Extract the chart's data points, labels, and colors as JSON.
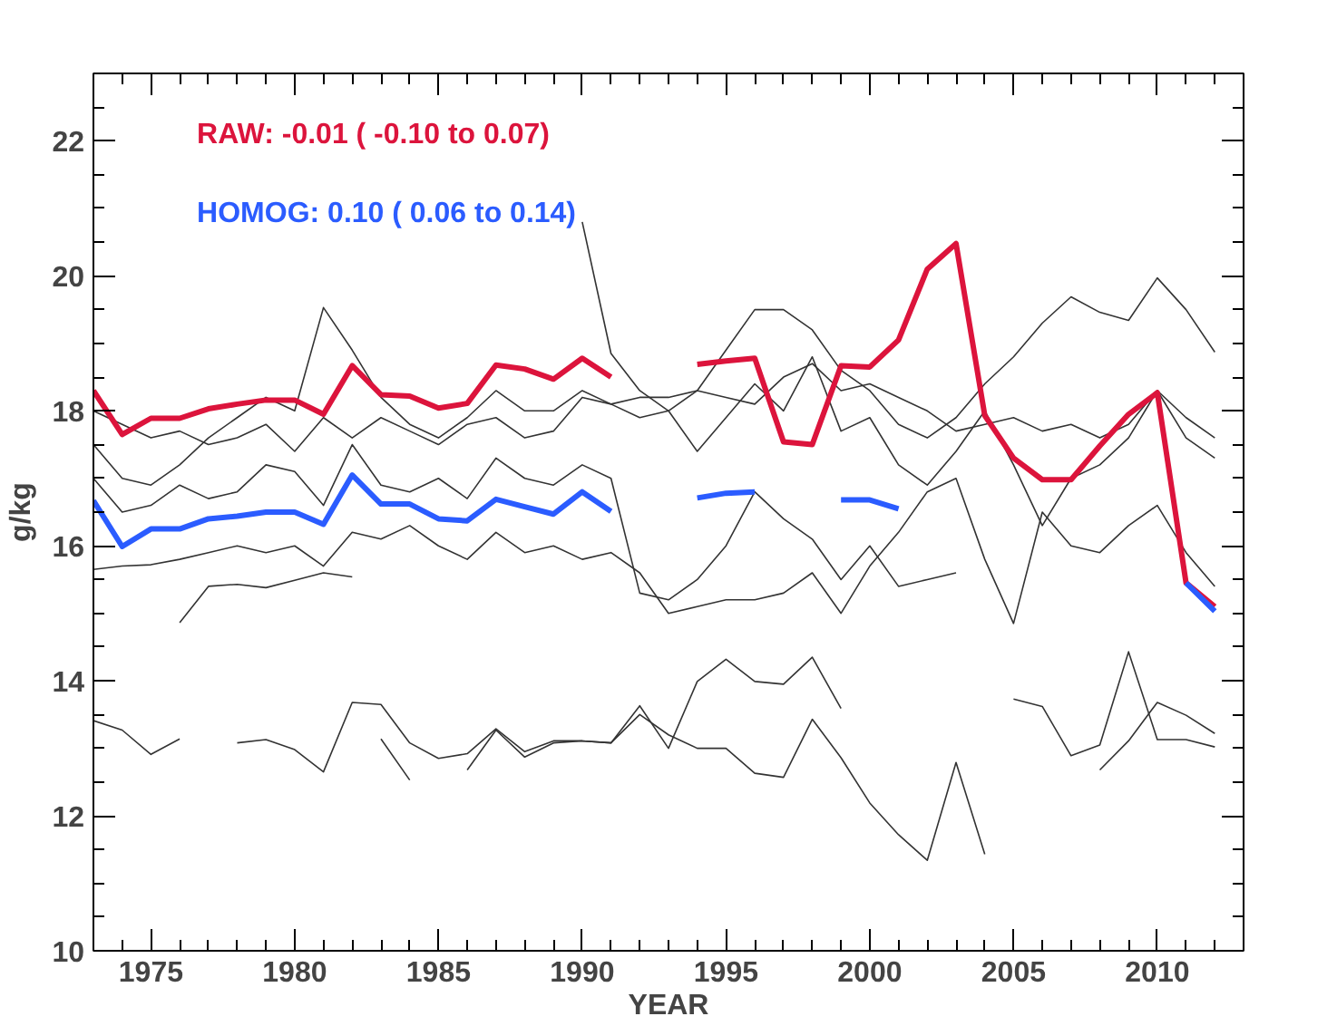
{
  "chart_data": {
    "type": "line",
    "xlabel": "YEAR",
    "ylabel": "g/kg",
    "legend": "top left",
    "grid": false,
    "line_style": "solid",
    "marker": "none",
    "xlim": [
      1973,
      2013
    ],
    "ylim": [
      10,
      23
    ],
    "xticks": [
      {
        "value": 1973,
        "label": null
      },
      {
        "value": 1974,
        "label": null
      },
      1975,
      {
        "value": 1976,
        "label": null
      },
      {
        "value": 1977,
        "label": null
      },
      {
        "value": 1978,
        "label": null
      },
      {
        "value": 1979,
        "label": null
      },
      1980,
      {
        "value": 1981,
        "label": null
      },
      {
        "value": 1982,
        "label": null
      },
      {
        "value": 1983,
        "label": null
      },
      {
        "value": 1984,
        "label": null
      },
      1985,
      {
        "value": 1986,
        "label": null
      },
      {
        "value": 1987,
        "label": null
      },
      {
        "value": 1988,
        "label": null
      },
      {
        "value": 1989,
        "label": null
      },
      1990,
      {
        "value": 1991,
        "label": null
      },
      {
        "value": 1992,
        "label": null
      },
      {
        "value": 1993,
        "label": null
      },
      {
        "value": 1994,
        "label": null
      },
      1995,
      {
        "value": 1996,
        "label": null
      },
      {
        "value": 1997,
        "label": null
      },
      {
        "value": 1998,
        "label": null
      },
      {
        "value": 1999,
        "label": null
      },
      2000,
      {
        "value": 2001,
        "label": null
      },
      {
        "value": 2002,
        "label": null
      },
      {
        "value": 2003,
        "label": null
      },
      {
        "value": 2004,
        "label": null
      },
      2005,
      {
        "value": 2006,
        "label": null
      },
      {
        "value": 2007,
        "label": null
      },
      {
        "value": 2008,
        "label": null
      },
      {
        "value": 2009,
        "label": null
      },
      2010,
      {
        "value": 2011,
        "label": null
      },
      {
        "value": 2012,
        "label": null
      }
    ],
    "yticks": [
      10,
      {
        "value": 10.5,
        "label": null
      },
      {
        "value": 11,
        "label": null
      },
      {
        "value": 11.5,
        "label": null
      },
      12,
      {
        "value": 12.5,
        "label": null
      },
      {
        "value": 13,
        "label": null
      },
      {
        "value": 13.5,
        "label": null
      },
      14,
      {
        "value": 14.5,
        "label": null
      },
      {
        "value": 15,
        "label": null
      },
      {
        "value": 15.5,
        "label": null
      },
      16,
      {
        "value": 16.5,
        "label": null
      },
      {
        "value": 17,
        "label": null
      },
      {
        "value": 17.5,
        "label": null
      },
      18,
      {
        "value": 18.5,
        "label": null
      },
      {
        "value": 19,
        "label": null
      },
      {
        "value": 19.5,
        "label": null
      },
      20,
      {
        "value": 20.5,
        "label": null
      },
      {
        "value": 21,
        "label": null
      },
      {
        "value": 21.5,
        "label": null
      },
      22,
      {
        "value": 22.5,
        "label": null
      }
    ],
    "x": [
      1973,
      1974,
      1975,
      1976,
      1977,
      1978,
      1979,
      1980,
      1981,
      1982,
      1983,
      1984,
      1985,
      1986,
      1987,
      1988,
      1989,
      1990,
      1991,
      1992,
      1993,
      1994,
      1995,
      1996,
      1997,
      1998,
      1999,
      2000,
      2001,
      2002,
      2003,
      2004,
      2005,
      2006,
      2007,
      2008,
      2009,
      2010,
      2011,
      2012
    ],
    "series": [
      {
        "color": "#333333",
        "values": [
          13.41,
          13.27,
          12.91,
          13.14,
          null,
          13.08,
          13.13,
          12.98,
          12.65,
          13.68,
          13.65,
          13.08,
          12.85,
          12.92,
          13.29,
          12.95,
          13.11,
          13.11,
          13.08,
          13.5,
          13.2,
          13.0,
          13.0,
          12.63,
          12.57,
          13.43,
          12.86,
          12.19,
          11.72,
          11.34,
          12.79,
          11.43,
          null,
          null,
          null,
          null,
          null,
          null,
          null,
          null
        ]
      },
      {
        "color": "#333333",
        "values": [
          null,
          null,
          null,
          null,
          null,
          null,
          null,
          null,
          null,
          null,
          13.14,
          12.53,
          null,
          12.68,
          13.27,
          12.87,
          13.08,
          13.11,
          13.08,
          13.63,
          13.0,
          13.99,
          14.32,
          13.99,
          13.95,
          14.35,
          13.59,
          null,
          null,
          null,
          null,
          null,
          null,
          null,
          null,
          null,
          null,
          null,
          null,
          null
        ]
      },
      {
        "color": "#333333",
        "values": [
          null,
          null,
          null,
          null,
          null,
          null,
          null,
          null,
          null,
          null,
          null,
          null,
          null,
          null,
          null,
          null,
          null,
          null,
          null,
          null,
          null,
          null,
          null,
          null,
          null,
          null,
          null,
          null,
          null,
          null,
          null,
          null,
          13.73,
          13.62,
          12.89,
          13.05,
          14.43,
          13.13,
          13.13,
          13.02
        ]
      },
      {
        "color": "#333333",
        "values": [
          null,
          null,
          null,
          null,
          null,
          null,
          null,
          null,
          null,
          null,
          null,
          null,
          null,
          null,
          null,
          null,
          null,
          null,
          null,
          null,
          null,
          null,
          null,
          null,
          null,
          null,
          null,
          null,
          null,
          null,
          null,
          null,
          null,
          null,
          null,
          12.68,
          13.11,
          13.68,
          13.49,
          13.22
        ]
      },
      {
        "color": "#333333",
        "values": [
          null,
          null,
          null,
          14.86,
          15.4,
          15.43,
          15.38,
          15.49,
          15.6,
          15.54,
          null,
          null,
          null,
          null,
          null,
          null,
          null,
          null,
          null,
          null,
          null,
          null,
          null,
          null,
          null,
          null,
          null,
          null,
          null,
          null,
          null,
          null,
          null,
          null,
          null,
          null,
          null,
          null,
          null,
          null
        ]
      },
      {
        "color": "#333333",
        "values": [
          17.5,
          17.0,
          16.9,
          17.2,
          17.6,
          17.9,
          18.2,
          18.0,
          19.53,
          18.9,
          18.2,
          17.8,
          17.6,
          17.9,
          18.3,
          18.0,
          18.0,
          18.3,
          18.1,
          17.9,
          18.0,
          18.3,
          18.9,
          19.5,
          19.5,
          19.2,
          18.6,
          18.3,
          17.8,
          17.6,
          17.9,
          18.4,
          18.8,
          19.3,
          19.69,
          19.46,
          19.34,
          19.97,
          19.5,
          18.87
        ]
      },
      {
        "color": "#333333",
        "values": [
          null,
          null,
          null,
          null,
          null,
          null,
          null,
          null,
          null,
          null,
          null,
          null,
          null,
          null,
          null,
          null,
          null,
          20.8,
          18.85,
          18.3,
          18.0,
          17.4,
          17.9,
          18.4,
          18.0,
          18.8,
          17.7,
          17.9,
          17.2,
          16.9,
          17.4,
          18.0,
          17.2,
          16.3,
          17.0,
          17.2,
          17.6,
          18.3,
          17.6,
          17.3
        ]
      },
      {
        "color": "#333333",
        "values": [
          17.0,
          16.5,
          16.6,
          16.9,
          16.7,
          16.8,
          17.2,
          17.1,
          16.6,
          17.5,
          16.9,
          16.8,
          17.0,
          16.7,
          17.3,
          17.0,
          16.9,
          17.2,
          17.0,
          15.3,
          15.2,
          15.5,
          16.0,
          16.8,
          16.4,
          16.1,
          15.5,
          16.0,
          15.4,
          15.5,
          15.6,
          null,
          null,
          null,
          null,
          null,
          null,
          null,
          null,
          null
        ]
      },
      {
        "color": "#333333",
        "values": [
          15.65,
          15.7,
          15.72,
          15.8,
          15.9,
          16.0,
          15.9,
          16.0,
          15.7,
          16.2,
          16.1,
          16.3,
          16.0,
          15.8,
          16.2,
          15.9,
          16.0,
          15.8,
          15.9,
          15.6,
          15.0,
          15.1,
          15.2,
          15.2,
          15.3,
          15.6,
          15.0,
          15.7,
          16.2,
          16.8,
          17.0,
          15.8,
          14.85,
          16.5,
          16.0,
          15.9,
          16.3,
          16.6,
          15.9,
          15.4
        ]
      },
      {
        "color": "#333333",
        "values": [
          18.0,
          17.8,
          17.6,
          17.7,
          17.5,
          17.6,
          17.8,
          17.4,
          17.9,
          17.6,
          17.9,
          17.7,
          17.5,
          17.8,
          17.9,
          17.6,
          17.7,
          18.2,
          18.1,
          18.2,
          18.2,
          18.3,
          18.2,
          18.1,
          18.5,
          18.7,
          18.3,
          18.4,
          18.2,
          18.0,
          17.7,
          17.8,
          17.9,
          17.7,
          17.8,
          17.6,
          17.8,
          18.3,
          17.9,
          17.6
        ]
      },
      {
        "name": "RAW: -0.01 ( -0.10 to 0.07)",
        "color": "#dc143c",
        "values": [
          18.3,
          17.65,
          17.89,
          17.89,
          18.03,
          18.1,
          18.16,
          18.16,
          17.95,
          18.67,
          18.24,
          18.22,
          18.04,
          18.11,
          18.68,
          18.62,
          18.47,
          18.78,
          18.5,
          null,
          null,
          18.69,
          18.74,
          18.78,
          17.54,
          17.5,
          18.67,
          18.65,
          19.05,
          20.1,
          20.48,
          17.93,
          17.3,
          16.98,
          16.98,
          17.48,
          17.95,
          18.27,
          15.45,
          15.1
        ]
      },
      {
        "name": "HOMOG: 0.10 ( 0.06 to 0.14)",
        "color": "#2b5cff",
        "values": [
          16.67,
          15.99,
          16.25,
          16.25,
          16.4,
          16.44,
          16.5,
          16.5,
          16.32,
          17.05,
          16.62,
          16.62,
          16.4,
          16.37,
          16.69,
          16.58,
          16.47,
          16.8,
          16.51,
          null,
          null,
          16.71,
          16.78,
          16.8,
          null,
          null,
          16.68,
          16.68,
          16.55,
          null,
          null,
          null,
          null,
          null,
          null,
          null,
          null,
          null,
          15.45,
          15.03
        ]
      }
    ]
  }
}
